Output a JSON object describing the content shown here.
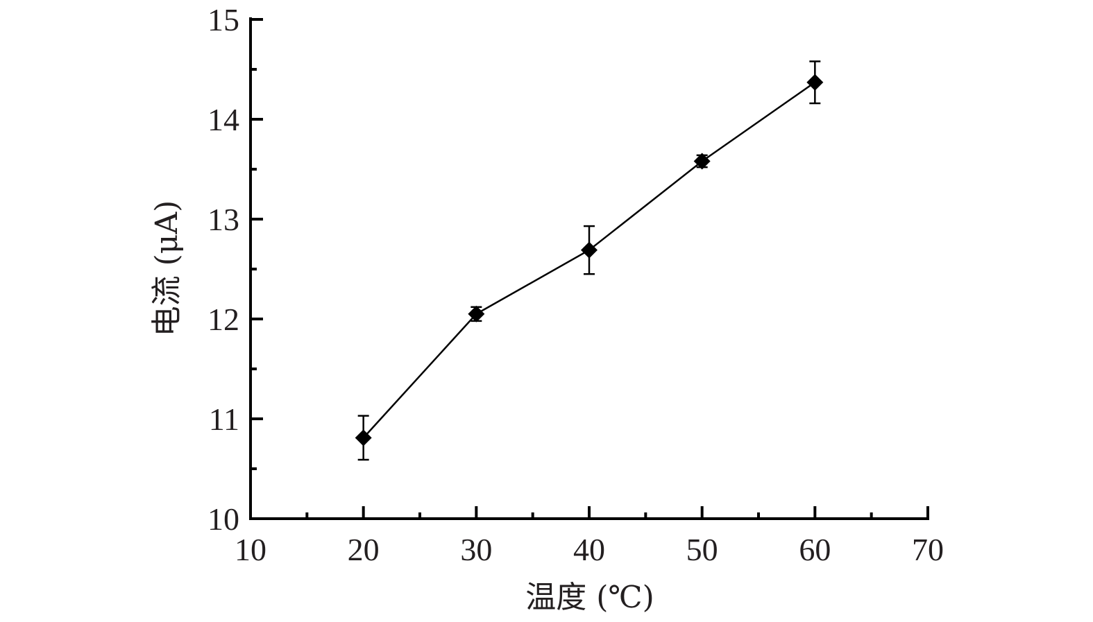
{
  "chart_data": {
    "type": "line",
    "title": "",
    "xlabel": "温度 (℃)",
    "ylabel": "电流 (μA)",
    "xlim": [
      10,
      70
    ],
    "ylim": [
      10,
      15
    ],
    "x_ticks": [
      10,
      20,
      30,
      40,
      50,
      60,
      70
    ],
    "x_tick_labels": [
      "10",
      "20",
      "30",
      "40",
      "50",
      "60",
      "70"
    ],
    "x_minor_ticks": [
      15,
      25,
      35,
      45,
      55,
      65
    ],
    "y_ticks": [
      10,
      11,
      12,
      13,
      14,
      15
    ],
    "y_tick_labels": [
      "10",
      "11",
      "12",
      "13",
      "14",
      "15"
    ],
    "y_minor_ticks": [
      10.5,
      11.5,
      12.5,
      13.5,
      14.5
    ],
    "grid": false,
    "legend": "none",
    "marker": "diamond",
    "color": "#000000",
    "series": [
      {
        "x": [
          20,
          30,
          40,
          50,
          60
        ],
        "y": [
          10.81,
          12.05,
          12.69,
          13.58,
          14.37
        ],
        "error": [
          0.22,
          0.07,
          0.24,
          0.06,
          0.21
        ]
      }
    ]
  }
}
